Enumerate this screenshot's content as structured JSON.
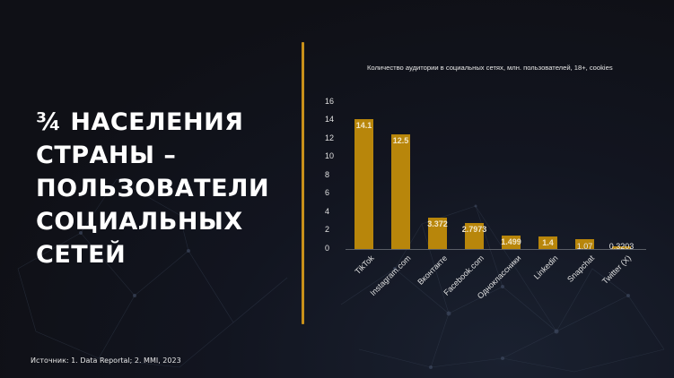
{
  "slide": {
    "headline_lines": [
      "¾ НАСЕЛЕНИЯ",
      "СТРАНЫ –",
      "ПОЛЬЗОВАТЕЛИ",
      "СОЦИАЛЬНЫХ",
      "СЕТЕЙ"
    ],
    "source": "Источник: 1. Data Reportal; 2. MMI, 2023",
    "accent_color": "#c8901a"
  },
  "chart_data": {
    "type": "bar",
    "title": "Количество аудитории в социальных сетях, млн. пользователей,  18+, cookies",
    "categories": [
      "TikTok",
      "Instagram.com",
      "Вконтакте",
      "Facebook.com",
      "Одноклассники",
      "Linkedin",
      "Snapchat",
      "Twitter (X)"
    ],
    "values": [
      14.1,
      12.5,
      3.372,
      2.7973,
      1.499,
      1.4,
      1.07,
      0.3203
    ],
    "value_labels": [
      "14.1",
      "12.5",
      "3.372",
      "2.7973",
      "1.499",
      "1.4",
      "1.07",
      "0.3203"
    ],
    "xlabel": "",
    "ylabel": "",
    "ylim": [
      0,
      16
    ],
    "yticks": [
      "0",
      "2",
      "4",
      "6",
      "8",
      "10",
      "12",
      "14",
      "16"
    ],
    "bar_color": "#b8860b",
    "grid": false,
    "legend": "none"
  }
}
